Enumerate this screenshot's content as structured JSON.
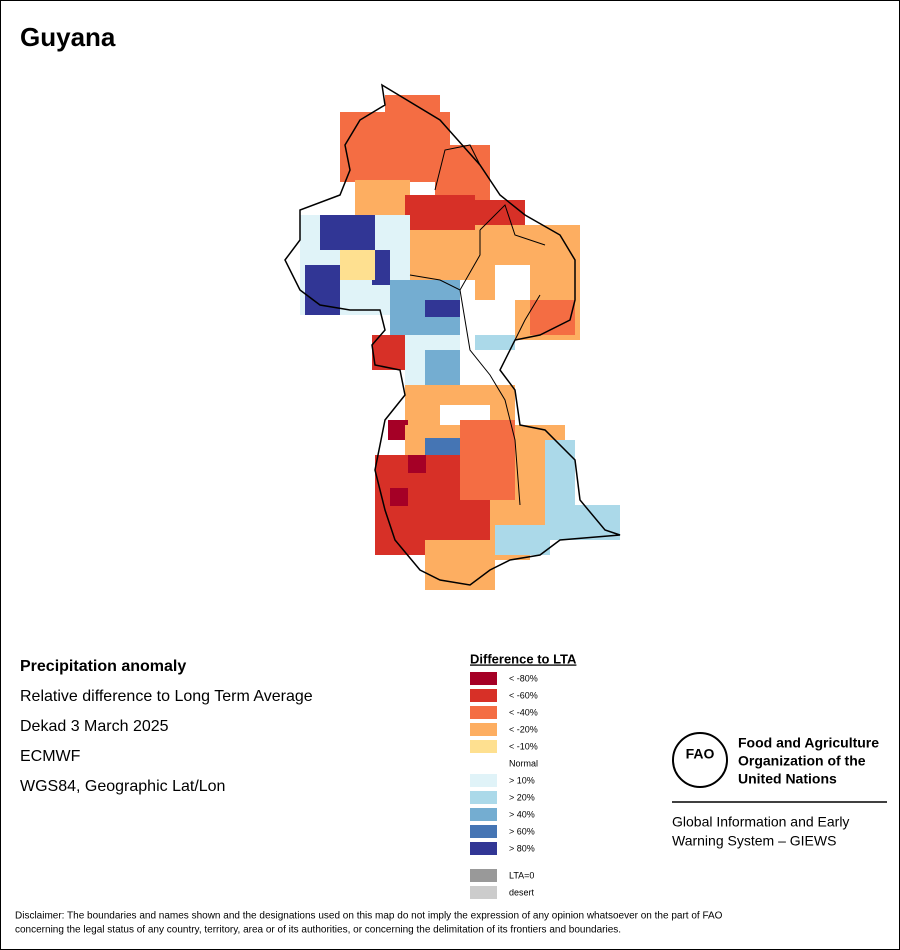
{
  "title": "Guyana",
  "info": [
    "Precipitation anomaly",
    "Relative difference to Long Term Average",
    "Dekad 3 March 2025",
    "ECMWF",
    "WGS84, Geographic Lat/Lon"
  ],
  "legend": {
    "title": "Difference to LTA",
    "items": [
      {
        "label": "< -80%",
        "color": "#a50026"
      },
      {
        "label": "< -60%",
        "color": "#d73027"
      },
      {
        "label": "< -40%",
        "color": "#f46d43"
      },
      {
        "label": "< -20%",
        "color": "#fdae61"
      },
      {
        "label": "< -10%",
        "color": "#fee090"
      },
      {
        "label": "Normal",
        "color": "#ffffff"
      },
      {
        "label": "> 10%",
        "color": "#e0f3f8"
      },
      {
        "label": "> 20%",
        "color": "#abd9e9"
      },
      {
        "label": "> 40%",
        "color": "#74add1"
      },
      {
        "label": "> 60%",
        "color": "#4575b4"
      },
      {
        "label": "> 80%",
        "color": "#313695"
      }
    ],
    "extra": [
      {
        "label": "LTA=0",
        "color": "#999999"
      },
      {
        "label": "desert",
        "color": "#cccccc"
      }
    ]
  },
  "logo": "FAO",
  "org": {
    "name": [
      "Food and Agriculture",
      "Organization of the",
      "United Nations"
    ],
    "giews": [
      "Global Information and Early",
      "Warning System – GIEWS"
    ]
  },
  "disclaimer": [
    "Disclaimer: The boundaries and names shown and the designations used on this map do not imply the expression of any opinion whatsoever on the part of FAO",
    "concerning the legal status of any country, territory, area or of its authorities, or concerning the delimitation of its frontiers and boundaries."
  ]
}
